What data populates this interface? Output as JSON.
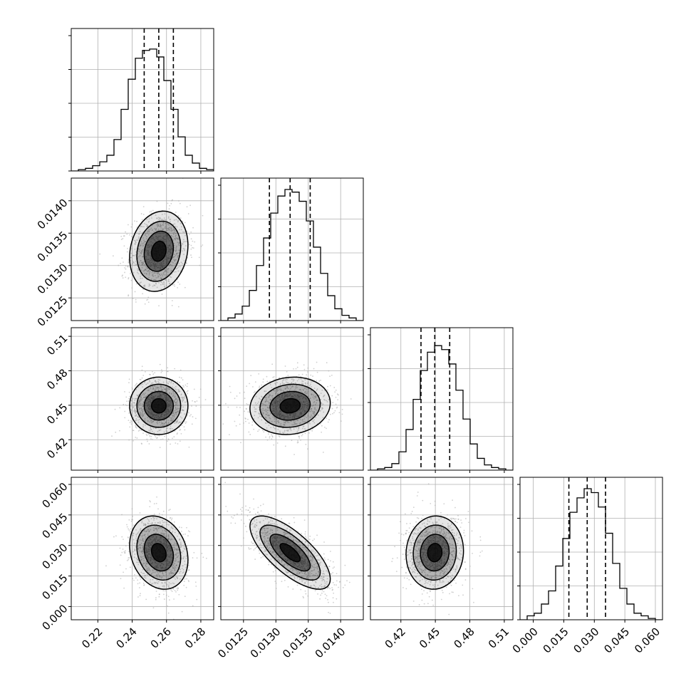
{
  "chart_data": {
    "type": "corner",
    "grid": true,
    "colors": {
      "line": "#000000",
      "grid": "#b0b0b0",
      "density": "#000000",
      "points": "#aaaaaa"
    },
    "params": [
      {
        "range": [
          0.2045,
          0.2875
        ],
        "ticks": [
          "0.22",
          "0.24",
          "0.26",
          "0.28"
        ],
        "tick_values": [
          0.22,
          0.24,
          0.26,
          0.28
        ],
        "quantiles": [
          0.247,
          0.2555,
          0.264
        ],
        "mean": 0.2555,
        "sd": 0.0085
      },
      {
        "range": [
          0.01215,
          0.01435
        ],
        "ticks": [
          "0.0125",
          "0.0130",
          "0.0135",
          "0.0140"
        ],
        "tick_values": [
          0.0125,
          0.013,
          0.0135,
          0.014
        ],
        "quantiles": [
          0.0129,
          0.01322,
          0.01353
        ],
        "mean": 0.01322,
        "sd": 0.00031
      },
      {
        "range": [
          0.3935,
          0.5175
        ],
        "ticks": [
          "0.42",
          "0.45",
          "0.48",
          "0.51"
        ],
        "tick_values": [
          0.42,
          0.45,
          0.48,
          0.51
        ],
        "quantiles": [
          0.4375,
          0.4495,
          0.4625
        ],
        "mean": 0.4495,
        "sd": 0.0125
      },
      {
        "range": [
          -0.0065,
          0.0635
        ],
        "ticks": [
          "0.000",
          "0.015",
          "0.030",
          "0.045",
          "0.060"
        ],
        "tick_values": [
          0.0,
          0.015,
          0.03,
          0.045,
          0.06
        ],
        "quantiles": [
          0.0175,
          0.0265,
          0.0355
        ],
        "mean": 0.0265,
        "sd": 0.009
      }
    ],
    "correlations": [
      {
        "i": 1,
        "j": 0,
        "rho": 0.15
      },
      {
        "i": 2,
        "j": 0,
        "rho": 0.0
      },
      {
        "i": 2,
        "j": 1,
        "rho": 0.1
      },
      {
        "i": 3,
        "j": 0,
        "rho": -0.2
      },
      {
        "i": 3,
        "j": 1,
        "rho": -0.72
      },
      {
        "i": 3,
        "j": 2,
        "rho": 0.05
      }
    ],
    "contour_levels_sigma": [
      0.5,
      1.0,
      1.5,
      2.0
    ],
    "histograms": [
      {
        "counts": [
          0.0,
          0.01,
          0.02,
          0.04,
          0.07,
          0.12,
          0.24,
          0.47,
          0.7,
          0.86,
          0.92,
          0.93,
          0.87,
          0.69,
          0.47,
          0.26,
          0.12,
          0.06,
          0.02,
          0.01
        ]
      },
      {
        "counts": [
          0.0,
          0.02,
          0.05,
          0.11,
          0.23,
          0.42,
          0.63,
          0.82,
          0.95,
          1.0,
          0.98,
          0.91,
          0.76,
          0.56,
          0.36,
          0.19,
          0.09,
          0.04,
          0.02,
          0.0
        ]
      },
      {
        "counts": [
          0.0,
          0.01,
          0.02,
          0.05,
          0.14,
          0.31,
          0.54,
          0.76,
          0.9,
          0.95,
          0.92,
          0.81,
          0.61,
          0.39,
          0.2,
          0.09,
          0.04,
          0.02,
          0.01,
          0.0
        ]
      },
      {
        "counts": [
          0.0,
          0.03,
          0.05,
          0.12,
          0.22,
          0.41,
          0.62,
          0.82,
          0.93,
          1.0,
          0.97,
          0.86,
          0.66,
          0.43,
          0.24,
          0.12,
          0.05,
          0.03,
          0.01,
          0.0
        ]
      }
    ]
  }
}
